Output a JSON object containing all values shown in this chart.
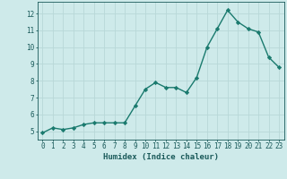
{
  "x": [
    0,
    1,
    2,
    3,
    4,
    5,
    6,
    7,
    8,
    9,
    10,
    11,
    12,
    13,
    14,
    15,
    16,
    17,
    18,
    19,
    20,
    21,
    22,
    23
  ],
  "y": [
    4.9,
    5.2,
    5.1,
    5.2,
    5.4,
    5.5,
    5.5,
    5.5,
    5.5,
    6.5,
    7.5,
    7.9,
    7.6,
    7.6,
    7.3,
    8.2,
    10.0,
    11.1,
    12.2,
    11.5,
    11.1,
    10.9,
    9.4,
    8.8
  ],
  "line_color": "#1a7a6e",
  "marker": "D",
  "marker_size": 2.2,
  "bg_color": "#ceeaea",
  "grid_color": "#b8d8d8",
  "xlabel": "Humidex (Indice chaleur)",
  "xlabel_color": "#1a5a5a",
  "tick_color": "#1a5a5a",
  "ylim": [
    4.5,
    12.7
  ],
  "xlim": [
    -0.5,
    23.5
  ],
  "yticks": [
    5,
    6,
    7,
    8,
    9,
    10,
    11,
    12
  ],
  "xticks": [
    0,
    1,
    2,
    3,
    4,
    5,
    6,
    7,
    8,
    9,
    10,
    11,
    12,
    13,
    14,
    15,
    16,
    17,
    18,
    19,
    20,
    21,
    22,
    23
  ],
  "font_size_label": 6.5,
  "font_size_tick": 5.5,
  "linewidth": 1.0
}
